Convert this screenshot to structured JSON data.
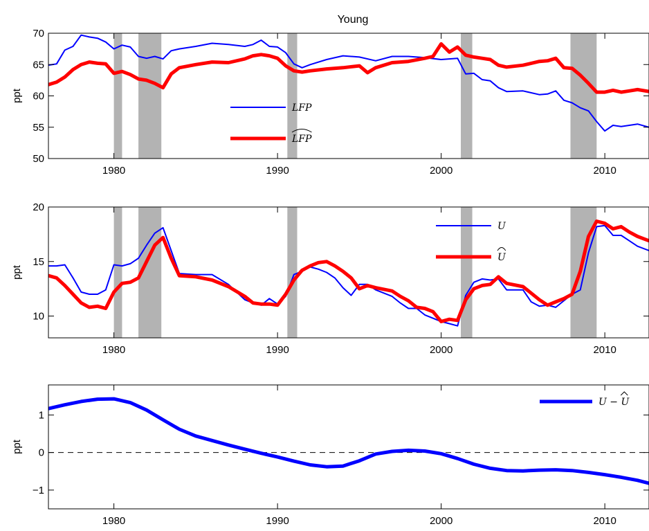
{
  "chart_data": [
    {
      "type": "line",
      "title": "Young",
      "ylabel": "ppt",
      "xlim": [
        1976,
        2012.7
      ],
      "ylim": [
        50,
        70
      ],
      "xticks": [
        1980,
        1990,
        2000,
        2010
      ],
      "yticks": [
        50,
        55,
        60,
        65,
        70
      ],
      "recessions": [
        [
          1980.0,
          1980.5
        ],
        [
          1981.5,
          1982.9
        ],
        [
          1990.6,
          1991.2
        ],
        [
          2001.2,
          2001.9
        ],
        [
          2007.9,
          2009.5
        ]
      ],
      "legend_position": "center",
      "colors": {
        "LFP": "#0000ff",
        "LFP_hat": "#ff0000",
        "recession": "#b3b3b3"
      },
      "series": [
        {
          "name": "LFP",
          "color": "#0000ff",
          "width": 2,
          "x": [
            1976,
            1976.5,
            1977,
            1977.5,
            1978,
            1978.5,
            1979,
            1979.5,
            1980,
            1980.5,
            1981,
            1981.5,
            1982,
            1982.5,
            1983,
            1983.5,
            1984,
            1985,
            1986,
            1987,
            1988,
            1988.5,
            1989,
            1989.5,
            1990,
            1990.5,
            1991,
            1991.5,
            1992,
            1993,
            1994,
            1995,
            1996,
            1997,
            1998,
            1999,
            2000,
            2001,
            2001.5,
            2002,
            2002.5,
            2003,
            2003.5,
            2004,
            2005,
            2006,
            2006.5,
            2007,
            2007.5,
            2008,
            2008.5,
            2009,
            2009.5,
            2010,
            2010.5,
            2011,
            2011.5,
            2012,
            2012.7
          ],
          "y": [
            64.9,
            65.1,
            67.3,
            67.9,
            69.7,
            69.4,
            69.2,
            68.6,
            67.5,
            68.1,
            67.8,
            66.3,
            66.0,
            66.3,
            65.9,
            67.2,
            67.5,
            67.9,
            68.4,
            68.2,
            67.9,
            68.2,
            68.9,
            67.9,
            67.8,
            66.9,
            65.1,
            64.5,
            65.0,
            65.8,
            66.4,
            66.2,
            65.6,
            66.3,
            66.3,
            66.1,
            65.8,
            66.0,
            63.5,
            63.6,
            62.6,
            62.4,
            61.3,
            60.7,
            60.8,
            60.2,
            60.3,
            60.8,
            59.3,
            58.9,
            58.1,
            57.6,
            55.9,
            54.4,
            55.3,
            55.1,
            55.3,
            55.5,
            55.0
          ]
        },
        {
          "name": "LFP_hat",
          "color": "#ff0000",
          "width": 5,
          "x": [
            1976,
            1976.5,
            1977,
            1977.5,
            1978,
            1978.5,
            1979,
            1979.5,
            1980,
            1980.5,
            1981,
            1981.5,
            1982,
            1982.5,
            1983,
            1983.5,
            1984,
            1985,
            1986,
            1987,
            1988,
            1988.5,
            1989,
            1989.5,
            1990,
            1990.5,
            1991,
            1991.5,
            1992,
            1993,
            1994,
            1995,
            1995.5,
            1996,
            1997,
            1998,
            1999,
            1999.5,
            2000,
            2000.5,
            2001,
            2001.5,
            2002,
            2002.5,
            2003,
            2003.5,
            2004,
            2005,
            2006,
            2006.5,
            2007,
            2007.5,
            2008,
            2008.5,
            2009,
            2009.5,
            2010,
            2010.5,
            2011,
            2011.5,
            2012,
            2012.7
          ],
          "y": [
            61.8,
            62.2,
            63.0,
            64.2,
            65.0,
            65.4,
            65.2,
            65.1,
            63.6,
            63.9,
            63.4,
            62.7,
            62.5,
            62.0,
            61.3,
            63.5,
            64.5,
            65.0,
            65.4,
            65.3,
            65.9,
            66.4,
            66.6,
            66.4,
            66.0,
            64.8,
            64.0,
            63.8,
            64.0,
            64.3,
            64.5,
            64.8,
            63.7,
            64.5,
            65.3,
            65.5,
            66.0,
            66.3,
            68.3,
            67.0,
            67.8,
            66.5,
            66.2,
            66.0,
            65.8,
            64.9,
            64.6,
            64.9,
            65.5,
            65.6,
            66.0,
            64.5,
            64.4,
            63.3,
            62.0,
            60.6,
            60.6,
            60.9,
            60.6,
            60.8,
            61.0,
            60.7
          ]
        }
      ],
      "legend": [
        {
          "label": "LFP",
          "series": 0
        },
        {
          "label": "LFP",
          "series": 1,
          "hat": true
        }
      ]
    },
    {
      "type": "line",
      "title": "",
      "ylabel": "ppt",
      "xlim": [
        1976,
        2012.7
      ],
      "ylim": [
        8,
        20
      ],
      "xticks": [
        1980,
        1990,
        2000,
        2010
      ],
      "yticks": [
        10,
        15,
        20
      ],
      "recessions": [
        [
          1980.0,
          1980.5
        ],
        [
          1981.5,
          1982.9
        ],
        [
          1990.6,
          1991.2
        ],
        [
          2001.2,
          2001.9
        ],
        [
          2007.9,
          2009.5
        ]
      ],
      "legend_position": "top-right",
      "colors": {
        "U": "#0000ff",
        "U_hat": "#ff0000",
        "recession": "#b3b3b3"
      },
      "series": [
        {
          "name": "U",
          "color": "#0000ff",
          "width": 2,
          "x": [
            1976,
            1976.5,
            1977,
            1977.5,
            1978,
            1978.5,
            1979,
            1979.5,
            1980,
            1980.5,
            1981,
            1981.5,
            1982,
            1982.5,
            1983,
            1983.5,
            1984,
            1985,
            1986,
            1987,
            1988,
            1988.5,
            1989,
            1989.5,
            1990,
            1990.5,
            1991,
            1991.5,
            1992,
            1992.5,
            1993,
            1993.5,
            1994,
            1994.5,
            1995,
            1995.5,
            1996,
            1997,
            1997.5,
            1998,
            1998.5,
            1999,
            2000,
            2000.5,
            2001,
            2001.5,
            2002,
            2002.5,
            2003,
            2003.5,
            2004,
            2005,
            2005.5,
            2006,
            2006.5,
            2007,
            2007.5,
            2008,
            2008.5,
            2009,
            2009.5,
            2010,
            2010.5,
            2011,
            2011.5,
            2012,
            2012.7
          ],
          "y": [
            14.6,
            14.6,
            14.7,
            13.5,
            12.2,
            12.0,
            12.0,
            12.4,
            14.7,
            14.6,
            14.8,
            15.3,
            16.5,
            17.6,
            18.1,
            16.0,
            13.9,
            13.8,
            13.8,
            12.9,
            11.5,
            11.2,
            11.0,
            11.6,
            11.1,
            11.8,
            13.8,
            14.1,
            14.5,
            14.3,
            14.0,
            13.5,
            12.6,
            11.9,
            12.9,
            12.9,
            12.4,
            11.8,
            11.2,
            10.7,
            10.7,
            10.1,
            9.5,
            9.3,
            9.1,
            11.9,
            13.1,
            13.4,
            13.3,
            13.4,
            12.4,
            12.4,
            11.3,
            10.9,
            11.0,
            10.8,
            11.4,
            12.0,
            12.4,
            15.8,
            18.2,
            18.3,
            17.4,
            17.4,
            16.9,
            16.4,
            16.0
          ]
        },
        {
          "name": "U_hat",
          "color": "#ff0000",
          "width": 5,
          "x": [
            1976,
            1976.5,
            1977,
            1977.5,
            1978,
            1978.5,
            1979,
            1979.5,
            1980,
            1980.5,
            1981,
            1981.5,
            1982,
            1982.5,
            1983,
            1983.5,
            1984,
            1985,
            1986,
            1987,
            1988,
            1988.5,
            1989,
            1989.5,
            1990,
            1990.5,
            1991,
            1991.5,
            1992,
            1992.5,
            1993,
            1993.5,
            1994,
            1994.5,
            1995,
            1995.5,
            1996,
            1997,
            1997.5,
            1998,
            1998.5,
            1999,
            1999.5,
            2000,
            2000.5,
            2001,
            2001.5,
            2002,
            2002.5,
            2003,
            2003.5,
            2004,
            2005,
            2005.5,
            2006,
            2006.5,
            2007,
            2007.5,
            2008,
            2008.5,
            2009,
            2009.5,
            2010,
            2010.5,
            2011,
            2011.5,
            2012,
            2012.7
          ],
          "y": [
            13.7,
            13.5,
            12.8,
            12.0,
            11.2,
            10.8,
            10.9,
            10.7,
            12.2,
            13.0,
            13.1,
            13.5,
            15.0,
            16.5,
            17.2,
            15.3,
            13.7,
            13.6,
            13.3,
            12.7,
            11.8,
            11.2,
            11.1,
            11.1,
            11.0,
            12.0,
            13.3,
            14.2,
            14.6,
            14.9,
            15.0,
            14.6,
            14.1,
            13.5,
            12.5,
            12.8,
            12.6,
            12.3,
            11.8,
            11.4,
            10.8,
            10.7,
            10.4,
            9.5,
            9.7,
            9.6,
            11.5,
            12.5,
            12.8,
            12.9,
            13.6,
            13.0,
            12.7,
            12.1,
            11.5,
            11.0,
            11.3,
            11.6,
            12.0,
            14.1,
            17.3,
            18.7,
            18.5,
            18.0,
            18.2,
            17.7,
            17.3,
            16.9
          ]
        }
      ],
      "legend": [
        {
          "label": "U",
          "series": 0
        },
        {
          "label": "U",
          "series": 1,
          "hat": true
        }
      ]
    },
    {
      "type": "line",
      "title": "",
      "ylabel": "ppt",
      "xlim": [
        1976,
        2012.7
      ],
      "ylim": [
        -1.5,
        1.8
      ],
      "xticks": [
        1980,
        1990,
        2000,
        2010
      ],
      "yticks": [
        -1,
        0,
        1
      ],
      "ytick_labels": [
        "−1",
        "0",
        "1"
      ],
      "zero_line": "dashed",
      "legend_position": "top-right",
      "colors": {
        "diff": "#0000ff"
      },
      "series": [
        {
          "name": "U - U_hat",
          "color": "#0000ff",
          "width": 5,
          "x": [
            1976,
            1977,
            1978,
            1979,
            1980,
            1981,
            1982,
            1983,
            1984,
            1985,
            1986,
            1987,
            1988,
            1989,
            1990,
            1991,
            1992,
            1993,
            1994,
            1995,
            1996,
            1997,
            1998,
            1999,
            2000,
            2001,
            2002,
            2003,
            2004,
            2005,
            2006,
            2007,
            2008,
            2009,
            2010,
            2011,
            2012,
            2012.7
          ],
          "y": [
            1.17,
            1.27,
            1.36,
            1.42,
            1.43,
            1.33,
            1.13,
            0.87,
            0.62,
            0.44,
            0.32,
            0.2,
            0.09,
            -0.02,
            -0.12,
            -0.23,
            -0.33,
            -0.38,
            -0.36,
            -0.22,
            -0.04,
            0.03,
            0.06,
            0.04,
            -0.03,
            -0.16,
            -0.31,
            -0.42,
            -0.48,
            -0.49,
            -0.47,
            -0.46,
            -0.48,
            -0.53,
            -0.59,
            -0.66,
            -0.74,
            -0.82
          ]
        }
      ],
      "legend": [
        {
          "label": "U −",
          "label2": "U",
          "series": 0
        }
      ]
    }
  ]
}
